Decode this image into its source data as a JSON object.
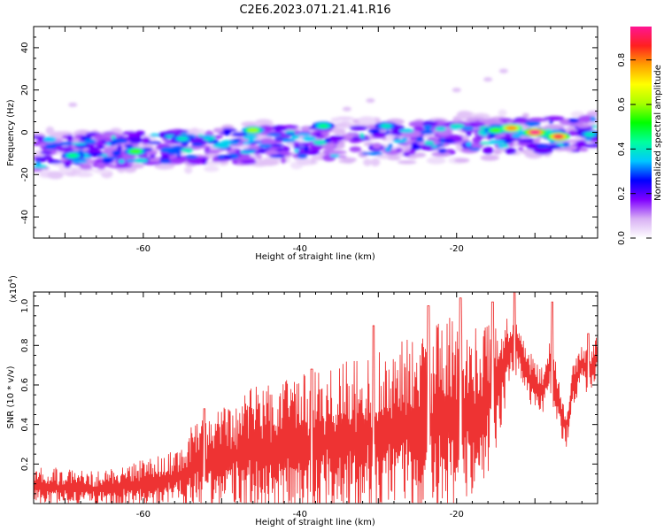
{
  "figure": {
    "title": "C2E6.2023.071.21.41.R16"
  },
  "chart_data": [
    {
      "type": "heatmap",
      "xlabel": "Height of straight line (km)",
      "ylabel": "Frequency (Hz)",
      "xlim": [
        -74,
        -2
      ],
      "ylim": [
        -50,
        50
      ],
      "x_ticks": [
        -60,
        -40,
        -20
      ],
      "y_ticks": [
        -40,
        -20,
        0,
        20,
        40
      ],
      "colorbar": {
        "label": "Normalized spectral amplitude",
        "range": [
          0,
          0.95
        ],
        "ticks": [
          0.0,
          0.2,
          0.4,
          0.6,
          0.8
        ],
        "colors": [
          "#ffffff",
          "#d8b0f4",
          "#8000ff",
          "#0000ff",
          "#00c8ff",
          "#00ff9c",
          "#00ff00",
          "#a8ff00",
          "#ffff00",
          "#ffa000",
          "#ff2020",
          "#ff1493"
        ]
      },
      "band_description": "Energy concentrated along a slowly rising band from about -10 Hz at -74 km to about 0 Hz at -2 km",
      "hot_spots": [
        {
          "x": -69,
          "y": -11,
          "amp": 0.45
        },
        {
          "x": -61,
          "y": -9,
          "amp": 0.55
        },
        {
          "x": -55,
          "y": -3,
          "amp": 0.4
        },
        {
          "x": -46,
          "y": 1,
          "amp": 0.6
        },
        {
          "x": -37,
          "y": 3,
          "amp": 0.45
        },
        {
          "x": -29,
          "y": 3,
          "amp": 0.4
        },
        {
          "x": -15,
          "y": 1,
          "amp": 0.55
        },
        {
          "x": -13,
          "y": 2,
          "amp": 0.78
        },
        {
          "x": -10,
          "y": 0,
          "amp": 0.95
        },
        {
          "x": -7,
          "y": -2,
          "amp": 0.9
        },
        {
          "x": -3,
          "y": -1,
          "amp": 0.4
        }
      ]
    },
    {
      "type": "line",
      "xlabel": "Height of straight line (km)",
      "ylabel": "SNR (10 * v/v)",
      "y_multiplier": "(x10",
      "y_multiplier_exp": "4",
      "y_multiplier_close": ")",
      "xlim": [
        -74,
        -2
      ],
      "ylim": [
        0,
        1.07
      ],
      "x_ticks": [
        -60,
        -40,
        -20
      ],
      "y_ticks": [
        0.2,
        0.4,
        0.6,
        0.8,
        1.0
      ],
      "line_color": "#ee3333",
      "series": [
        {
          "x": [
            -74,
            -72,
            -70,
            -68,
            -66,
            -64,
            -62,
            -60,
            -58,
            -56,
            -54,
            -52,
            -50,
            -48,
            -46,
            -44,
            -42,
            -40,
            -38,
            -36,
            -34,
            -32,
            -30,
            -28,
            -26,
            -24,
            -22,
            -20,
            -18,
            -16,
            -14,
            -13,
            -12,
            -11,
            -10,
            -9,
            -8,
            -7,
            -6,
            -5,
            -4,
            -3,
            -2
          ],
          "y": [
            0.08,
            0.08,
            0.08,
            0.08,
            0.07,
            0.08,
            0.09,
            0.1,
            0.11,
            0.13,
            0.17,
            0.2,
            0.22,
            0.24,
            0.26,
            0.27,
            0.28,
            0.29,
            0.3,
            0.31,
            0.32,
            0.33,
            0.35,
            0.37,
            0.38,
            0.4,
            0.42,
            0.44,
            0.46,
            0.5,
            0.72,
            0.8,
            0.78,
            0.66,
            0.6,
            0.57,
            0.72,
            0.5,
            0.38,
            0.62,
            0.7,
            0.66,
            0.75
          ],
          "spread": [
            0.1,
            0.1,
            0.1,
            0.09,
            0.09,
            0.1,
            0.11,
            0.12,
            0.13,
            0.15,
            0.22,
            0.24,
            0.26,
            0.3,
            0.34,
            0.34,
            0.34,
            0.36,
            0.38,
            0.38,
            0.4,
            0.4,
            0.42,
            0.44,
            0.46,
            0.5,
            0.54,
            0.5,
            0.44,
            0.4,
            0.3,
            0.16,
            0.14,
            0.14,
            0.12,
            0.12,
            0.18,
            0.14,
            0.1,
            0.12,
            0.12,
            0.12,
            0.1
          ],
          "peaks": [
            {
              "x": -52.2,
              "y": 0.48
            },
            {
              "x": -38.5,
              "y": 0.68
            },
            {
              "x": -30.6,
              "y": 0.9
            },
            {
              "x": -23.6,
              "y": 1.0
            },
            {
              "x": -19.5,
              "y": 1.04
            },
            {
              "x": -15.4,
              "y": 1.02
            },
            {
              "x": -12.6,
              "y": 1.07
            },
            {
              "x": -7.8,
              "y": 1.02
            },
            {
              "x": -3.2,
              "y": 0.86
            }
          ]
        }
      ]
    }
  ]
}
